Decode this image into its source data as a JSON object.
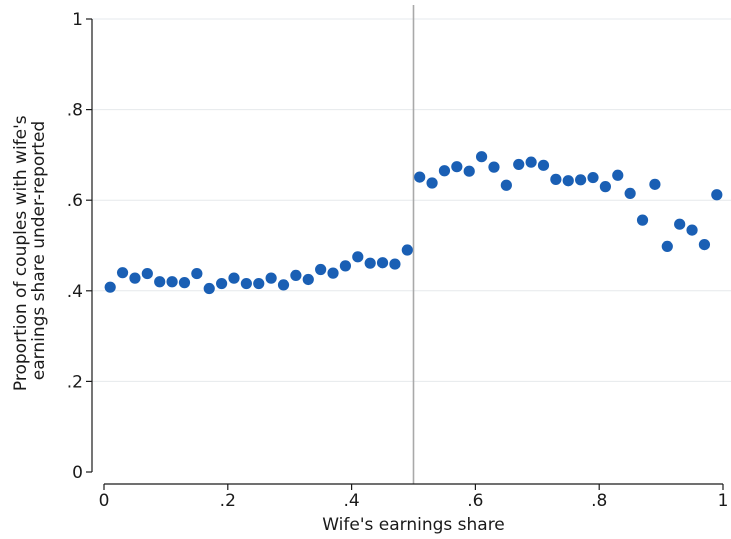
{
  "chart_data": {
    "type": "scatter",
    "title": "",
    "xlabel": "Wife's earnings share",
    "ylabel": "Proportion of couples with wife's earnings share under-reported",
    "ylabel_lines": [
      "Proportion of couples with wife's",
      "earnings share under-reported"
    ],
    "xlim": [
      0,
      1
    ],
    "ylim": [
      0,
      1
    ],
    "x_ticks": [
      {
        "value": 0,
        "label": "0"
      },
      {
        "value": 0.2,
        "label": ".2"
      },
      {
        "value": 0.4,
        "label": ".4"
      },
      {
        "value": 0.6,
        "label": ".6"
      },
      {
        "value": 0.8,
        "label": ".8"
      },
      {
        "value": 1,
        "label": "1"
      }
    ],
    "y_ticks": [
      {
        "value": 0,
        "label": "0"
      },
      {
        "value": 0.2,
        "label": ".2"
      },
      {
        "value": 0.4,
        "label": ".4"
      },
      {
        "value": 0.6,
        "label": ".6"
      },
      {
        "value": 0.8,
        "label": ".8"
      },
      {
        "value": 1,
        "label": "1"
      }
    ],
    "grid": true,
    "reference_line_x": 0.5,
    "colors": {
      "points": "#1a5fb4",
      "reference_line": "#a9a9a9",
      "grid": "#e6e9ec"
    },
    "series": [
      {
        "x": [
          0.01,
          0.03,
          0.05,
          0.07,
          0.09,
          0.11,
          0.13,
          0.15,
          0.17,
          0.19,
          0.21,
          0.23,
          0.25,
          0.27,
          0.29,
          0.31,
          0.33,
          0.35,
          0.37,
          0.39,
          0.41,
          0.43,
          0.45,
          0.47,
          0.49,
          0.51,
          0.53,
          0.55,
          0.57,
          0.59,
          0.61,
          0.63,
          0.65,
          0.67,
          0.69,
          0.71,
          0.73,
          0.75,
          0.77,
          0.79,
          0.81,
          0.83,
          0.85,
          0.87,
          0.89,
          0.91,
          0.93,
          0.95,
          0.97,
          0.99
        ],
        "y": [
          0.408,
          0.44,
          0.428,
          0.438,
          0.42,
          0.42,
          0.418,
          0.438,
          0.405,
          0.416,
          0.428,
          0.416,
          0.416,
          0.428,
          0.413,
          0.434,
          0.425,
          0.447,
          0.439,
          0.455,
          0.475,
          0.461,
          0.462,
          0.459,
          0.49,
          0.651,
          0.638,
          0.665,
          0.674,
          0.664,
          0.696,
          0.673,
          0.633,
          0.679,
          0.684,
          0.677,
          0.646,
          0.643,
          0.645,
          0.65,
          0.63,
          0.655,
          0.615,
          0.556,
          0.635,
          0.498,
          0.547,
          0.534,
          0.502,
          0.612
        ]
      }
    ]
  }
}
